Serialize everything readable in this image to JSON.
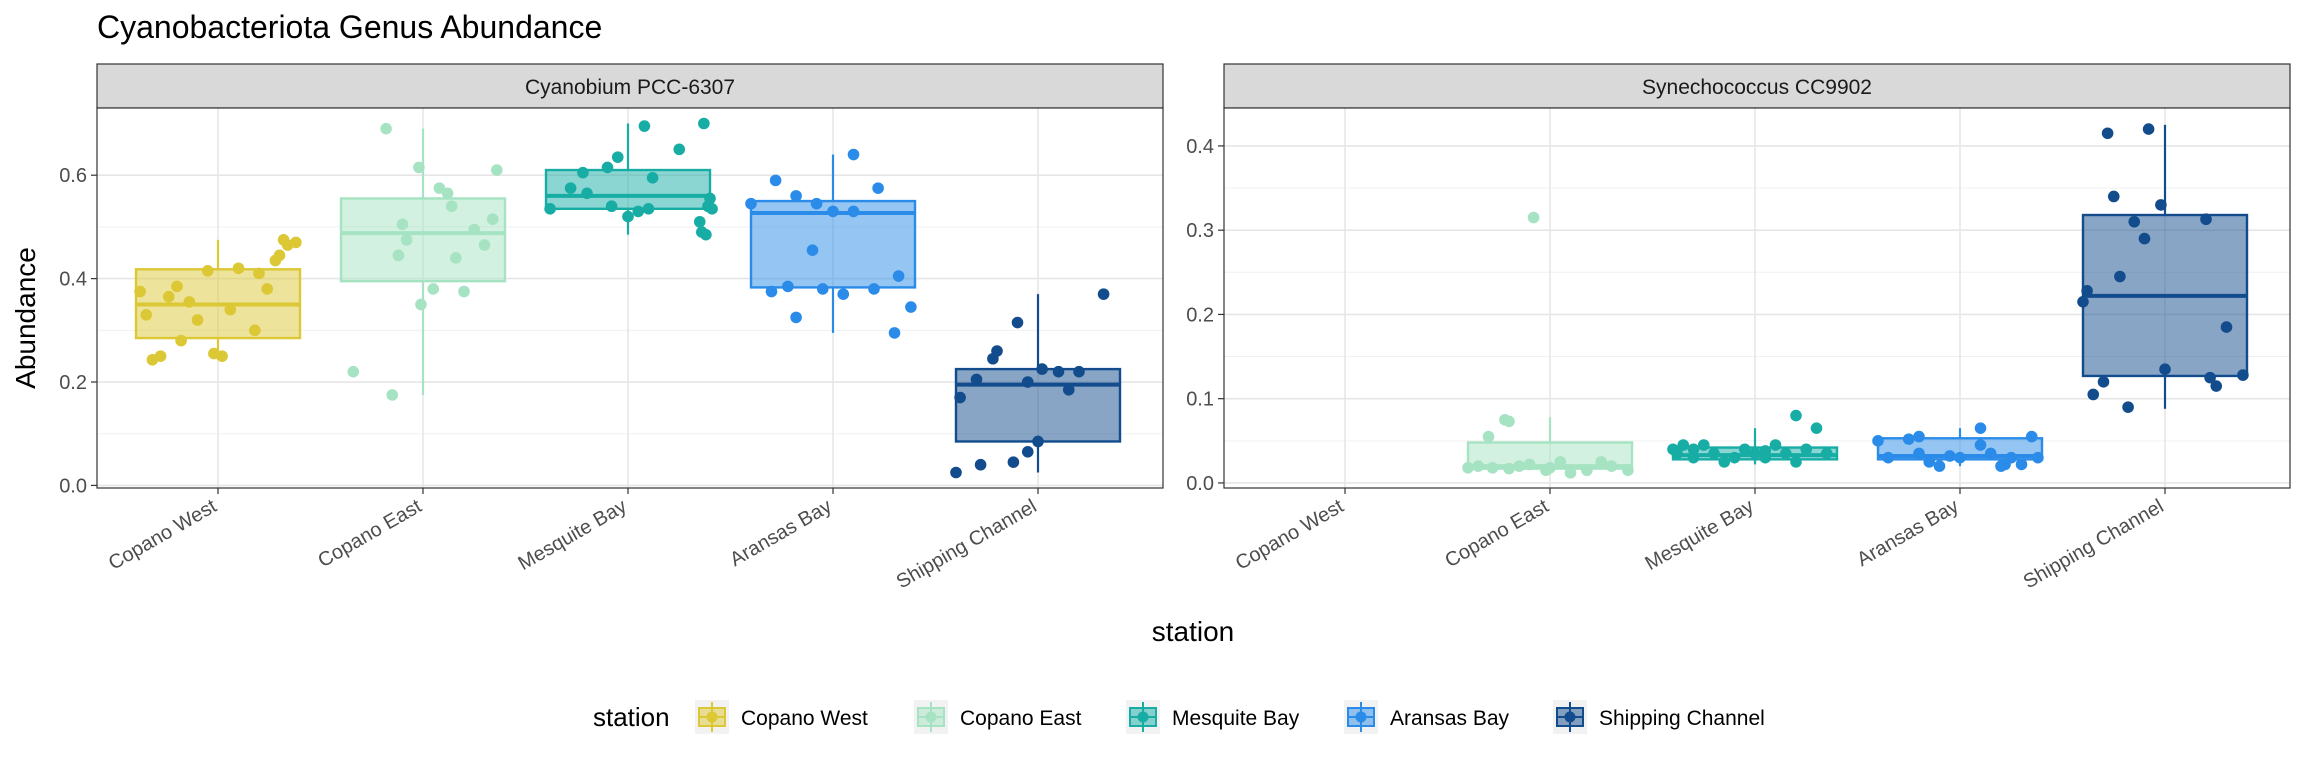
{
  "chart_data": {
    "type": "boxplot",
    "title": "Cyanobacteriota Genus Abundance",
    "xlabel": "station",
    "ylabel": "Abundance",
    "categories": [
      "Copano West",
      "Copano East",
      "Mesquite Bay",
      "Aransas Bay",
      "Shipping Channel"
    ],
    "colors": {
      "Copano West": "#DCC735",
      "Copano East": "#A6E3C2",
      "Mesquite Bay": "#17ADA5",
      "Aransas Bay": "#2A8CE8",
      "Shipping Channel": "#134C8C"
    },
    "legend": {
      "title": "station",
      "position": "bottom",
      "entries": [
        "Copano West",
        "Copano East",
        "Mesquite Bay",
        "Aransas Bay",
        "Shipping Channel"
      ]
    },
    "grid": true,
    "panels": [
      {
        "strip": "Cyanobium PCC-6307",
        "ylim": [
          -0.005,
          0.73
        ],
        "yticks": [
          0.0,
          0.2,
          0.4,
          0.6
        ],
        "ytick_labels": [
          "0.0",
          "0.2",
          "0.4",
          "0.6"
        ],
        "boxes": [
          {
            "station": "Copano West",
            "q1": 0.285,
            "median": 0.35,
            "q3": 0.418,
            "whisker_low": 0.243,
            "whisker_high": 0.475
          },
          {
            "station": "Copano East",
            "q1": 0.395,
            "median": 0.488,
            "q3": 0.555,
            "whisker_low": 0.175,
            "whisker_high": 0.69
          },
          {
            "station": "Mesquite Bay",
            "q1": 0.535,
            "median": 0.56,
            "q3": 0.61,
            "whisker_low": 0.485,
            "whisker_high": 0.7
          },
          {
            "station": "Aransas Bay",
            "q1": 0.383,
            "median": 0.527,
            "q3": 0.55,
            "whisker_low": 0.295,
            "whisker_high": 0.64
          },
          {
            "station": "Shipping Channel",
            "q1": 0.085,
            "median": 0.195,
            "q3": 0.225,
            "whisker_low": 0.025,
            "whisker_high": 0.37
          }
        ],
        "points": {
          "Copano West": [
            [
              -0.38,
              0.375
            ],
            [
              -0.35,
              0.33
            ],
            [
              -0.32,
              0.243
            ],
            [
              -0.28,
              0.25
            ],
            [
              -0.24,
              0.365
            ],
            [
              -0.2,
              0.385
            ],
            [
              -0.18,
              0.28
            ],
            [
              -0.14,
              0.355
            ],
            [
              -0.1,
              0.32
            ],
            [
              -0.05,
              0.415
            ],
            [
              -0.02,
              0.255
            ],
            [
              0.02,
              0.25
            ],
            [
              0.06,
              0.34
            ],
            [
              0.1,
              0.42
            ],
            [
              0.18,
              0.3
            ],
            [
              0.2,
              0.41
            ],
            [
              0.24,
              0.38
            ],
            [
              0.28,
              0.435
            ],
            [
              0.3,
              0.445
            ],
            [
              0.32,
              0.475
            ],
            [
              0.34,
              0.465
            ],
            [
              0.38,
              0.47
            ]
          ],
          "Copano East": [
            [
              -0.34,
              0.22
            ],
            [
              -0.18,
              0.69
            ],
            [
              -0.15,
              0.175
            ],
            [
              -0.12,
              0.445
            ],
            [
              -0.1,
              0.505
            ],
            [
              -0.08,
              0.475
            ],
            [
              -0.02,
              0.615
            ],
            [
              -0.01,
              0.35
            ],
            [
              0.05,
              0.38
            ],
            [
              0.08,
              0.575
            ],
            [
              0.12,
              0.565
            ],
            [
              0.14,
              0.54
            ],
            [
              0.16,
              0.44
            ],
            [
              0.2,
              0.375
            ],
            [
              0.25,
              0.495
            ],
            [
              0.3,
              0.465
            ],
            [
              0.34,
              0.515
            ],
            [
              0.36,
              0.61
            ]
          ],
          "Mesquite Bay": [
            [
              -0.38,
              0.535
            ],
            [
              -0.28,
              0.575
            ],
            [
              -0.22,
              0.605
            ],
            [
              -0.2,
              0.565
            ],
            [
              -0.1,
              0.615
            ],
            [
              -0.08,
              0.54
            ],
            [
              -0.05,
              0.635
            ],
            [
              0.0,
              0.52
            ],
            [
              0.05,
              0.53
            ],
            [
              0.08,
              0.695
            ],
            [
              0.1,
              0.535
            ],
            [
              0.12,
              0.595
            ],
            [
              0.25,
              0.65
            ],
            [
              0.35,
              0.51
            ],
            [
              0.36,
              0.49
            ],
            [
              0.38,
              0.485
            ],
            [
              0.37,
              0.7
            ],
            [
              0.39,
              0.54
            ],
            [
              0.4,
              0.555
            ],
            [
              0.41,
              0.535
            ]
          ],
          "Aransas Bay": [
            [
              -0.4,
              0.545
            ],
            [
              -0.3,
              0.375
            ],
            [
              -0.28,
              0.59
            ],
            [
              -0.22,
              0.385
            ],
            [
              -0.18,
              0.325
            ],
            [
              -0.18,
              0.56
            ],
            [
              -0.1,
              0.455
            ],
            [
              -0.08,
              0.545
            ],
            [
              -0.05,
              0.38
            ],
            [
              0.0,
              0.53
            ],
            [
              0.05,
              0.37
            ],
            [
              0.1,
              0.53
            ],
            [
              0.1,
              0.64
            ],
            [
              0.2,
              0.38
            ],
            [
              0.22,
              0.575
            ],
            [
              0.3,
              0.295
            ],
            [
              0.32,
              0.405
            ],
            [
              0.38,
              0.345
            ]
          ],
          "Shipping Channel": [
            [
              -0.4,
              0.025
            ],
            [
              -0.38,
              0.17
            ],
            [
              -0.3,
              0.205
            ],
            [
              -0.28,
              0.04
            ],
            [
              -0.22,
              0.245
            ],
            [
              -0.2,
              0.26
            ],
            [
              -0.12,
              0.045
            ],
            [
              -0.1,
              0.315
            ],
            [
              -0.05,
              0.065
            ],
            [
              -0.05,
              0.2
            ],
            [
              0.0,
              0.085
            ],
            [
              0.02,
              0.225
            ],
            [
              0.1,
              0.22
            ],
            [
              0.15,
              0.185
            ],
            [
              0.2,
              0.22
            ],
            [
              0.32,
              0.37
            ]
          ]
        }
      },
      {
        "strip": "Synechococcus CC9902",
        "ylim": [
          -0.006,
          0.445
        ],
        "yticks": [
          0.0,
          0.1,
          0.2,
          0.3,
          0.4
        ],
        "ytick_labels": [
          "0.0",
          "0.1",
          "0.2",
          "0.3",
          "0.4"
        ],
        "boxes": [
          {
            "station": "Copano East",
            "q1": 0.017,
            "median": 0.02,
            "q3": 0.048,
            "whisker_low": 0.01,
            "whisker_high": 0.078
          },
          {
            "station": "Mesquite Bay",
            "q1": 0.028,
            "median": 0.033,
            "q3": 0.042,
            "whisker_low": 0.022,
            "whisker_high": 0.065
          },
          {
            "station": "Aransas Bay",
            "q1": 0.028,
            "median": 0.032,
            "q3": 0.053,
            "whisker_low": 0.02,
            "whisker_high": 0.065
          },
          {
            "station": "Shipping Channel",
            "q1": 0.127,
            "median": 0.222,
            "q3": 0.318,
            "whisker_low": 0.088,
            "whisker_high": 0.425
          }
        ],
        "points": {
          "Copano East": [
            [
              -0.4,
              0.018
            ],
            [
              -0.35,
              0.02
            ],
            [
              -0.3,
              0.055
            ],
            [
              -0.28,
              0.018
            ],
            [
              -0.22,
              0.075
            ],
            [
              -0.2,
              0.073
            ],
            [
              -0.2,
              0.017
            ],
            [
              -0.15,
              0.02
            ],
            [
              -0.1,
              0.022
            ],
            [
              -0.02,
              0.015
            ],
            [
              -0.08,
              0.315
            ],
            [
              0.0,
              0.018
            ],
            [
              0.05,
              0.025
            ],
            [
              0.1,
              0.012
            ],
            [
              0.18,
              0.015
            ],
            [
              0.25,
              0.025
            ],
            [
              0.3,
              0.02
            ],
            [
              0.38,
              0.015
            ]
          ],
          "Mesquite Bay": [
            [
              -0.4,
              0.04
            ],
            [
              -0.38,
              0.035
            ],
            [
              -0.35,
              0.045
            ],
            [
              -0.3,
              0.03
            ],
            [
              -0.3,
              0.04
            ],
            [
              -0.25,
              0.045
            ],
            [
              -0.2,
              0.035
            ],
            [
              -0.15,
              0.025
            ],
            [
              -0.1,
              0.03
            ],
            [
              -0.05,
              0.04
            ],
            [
              0.0,
              0.035
            ],
            [
              0.05,
              0.03
            ],
            [
              0.1,
              0.045
            ],
            [
              0.15,
              0.035
            ],
            [
              0.2,
              0.025
            ],
            [
              0.25,
              0.04
            ],
            [
              0.2,
              0.08
            ],
            [
              0.3,
              0.065
            ],
            [
              0.35,
              0.035
            ],
            [
              0.05,
              0.038
            ]
          ],
          "Aransas Bay": [
            [
              -0.4,
              0.05
            ],
            [
              -0.35,
              0.03
            ],
            [
              -0.25,
              0.052
            ],
            [
              -0.2,
              0.035
            ],
            [
              -0.2,
              0.055
            ],
            [
              -0.15,
              0.025
            ],
            [
              -0.1,
              0.02
            ],
            [
              -0.05,
              0.032
            ],
            [
              0.0,
              0.03
            ],
            [
              0.1,
              0.045
            ],
            [
              0.1,
              0.065
            ],
            [
              0.15,
              0.035
            ],
            [
              0.2,
              0.02
            ],
            [
              0.22,
              0.022
            ],
            [
              0.25,
              0.03
            ],
            [
              0.3,
              0.022
            ],
            [
              0.35,
              0.055
            ],
            [
              0.38,
              0.03
            ]
          ],
          "Shipping Channel": [
            [
              -0.4,
              0.215
            ],
            [
              -0.38,
              0.228
            ],
            [
              -0.35,
              0.105
            ],
            [
              -0.3,
              0.12
            ],
            [
              -0.28,
              0.415
            ],
            [
              -0.25,
              0.34
            ],
            [
              -0.22,
              0.245
            ],
            [
              -0.18,
              0.09
            ],
            [
              -0.15,
              0.31
            ],
            [
              -0.1,
              0.29
            ],
            [
              -0.08,
              0.42
            ],
            [
              -0.02,
              0.33
            ],
            [
              0.0,
              0.135
            ],
            [
              0.2,
              0.313
            ],
            [
              0.22,
              0.125
            ],
            [
              0.25,
              0.115
            ],
            [
              0.3,
              0.185
            ],
            [
              0.38,
              0.128
            ]
          ]
        }
      }
    ]
  }
}
